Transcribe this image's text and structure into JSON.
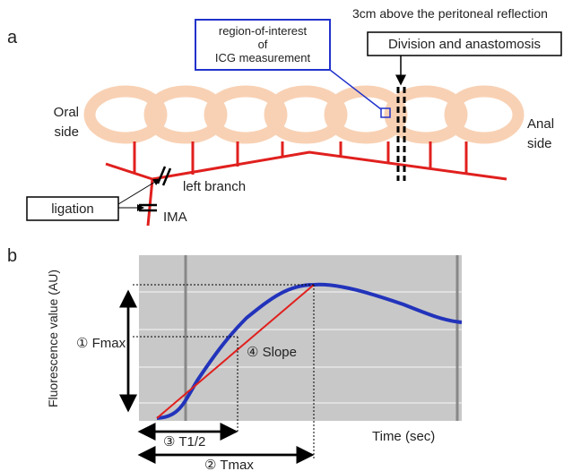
{
  "panel_a": {
    "label": "a",
    "roi_box": [
      "region-of-interest",
      "of",
      "ICG measurement"
    ],
    "reflection_note": "3cm above the peritoneal reflection",
    "division_box": "Division and anastomosis",
    "oral_side": [
      "Oral",
      "side"
    ],
    "anal_side": [
      "Anal",
      "side"
    ],
    "left_branch": "left branch",
    "ligation": "ligation",
    "ima": "IMA"
  },
  "panel_b": {
    "label": "b",
    "y_axis_label": "Fluorescence  value  (AU)",
    "x_axis_label": "Time (sec)",
    "fmax": "① Fmax",
    "slope": "④ Slope",
    "t_half": "③ T1/2",
    "tmax": "② Tmax"
  }
}
